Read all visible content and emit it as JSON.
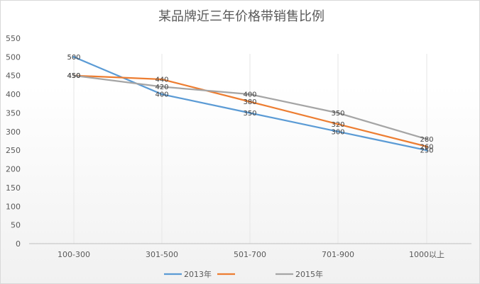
{
  "chart_data": {
    "type": "line",
    "title": "某品牌近三年价格带销售比例",
    "categories": [
      "100-300",
      "301-500",
      "501-700",
      "701-900",
      "1000以上"
    ],
    "ylim": [
      0,
      550
    ],
    "yticks": [
      0,
      50,
      100,
      150,
      200,
      250,
      300,
      350,
      400,
      450,
      500,
      550
    ],
    "grid": "vertical lines at categories",
    "legend_position": "bottom",
    "series": [
      {
        "name": "2013年",
        "color": "#5b9bd5",
        "values": [
          500,
          400,
          350,
          300,
          250
        ]
      },
      {
        "name": "",
        "color": "#ed7d31",
        "values": [
          450,
          440,
          380,
          320,
          260
        ]
      },
      {
        "name": "2015年",
        "color": "#a5a5a5",
        "values": [
          450,
          420,
          400,
          350,
          280
        ]
      }
    ]
  }
}
